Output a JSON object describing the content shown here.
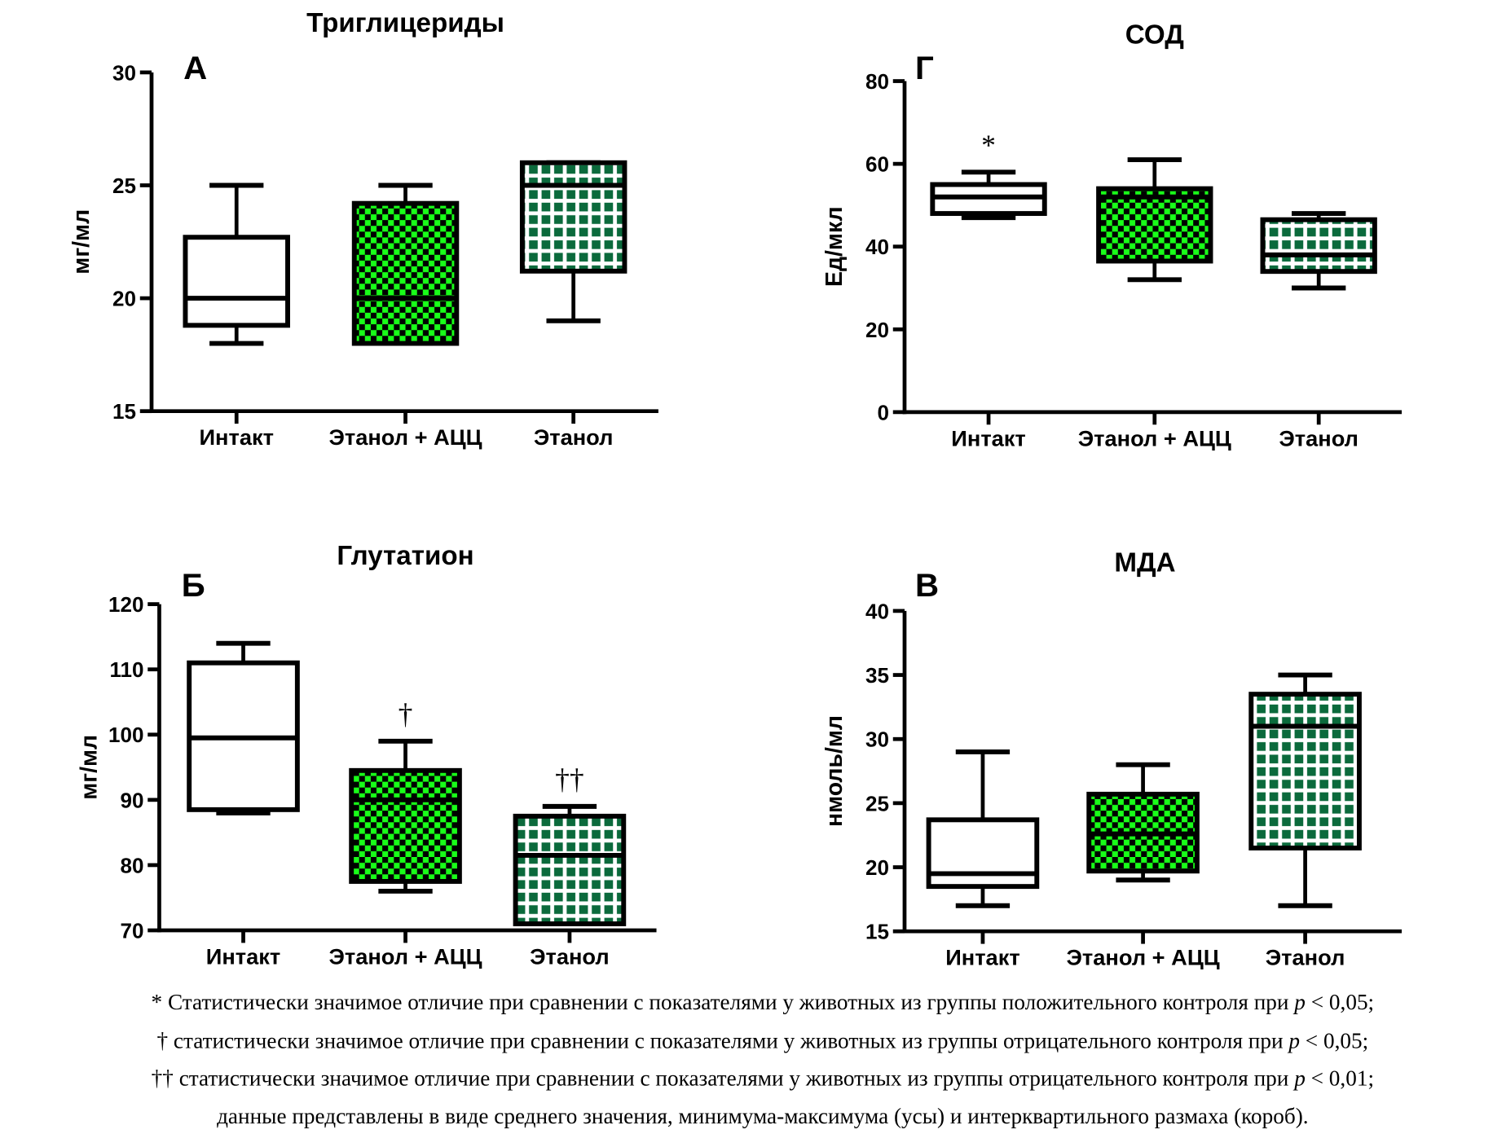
{
  "colors": {
    "checker_green": "#19ff19",
    "grid_green": "#0b6a3c",
    "stroke": "#000000"
  },
  "chart_data": [
    {
      "type": "box",
      "title": "Триглицериды",
      "panel_letter": "А",
      "ylabel": "мг/мл",
      "ylim": [
        15,
        30
      ],
      "yticks": [
        15,
        20,
        25,
        30
      ],
      "categories": [
        "Интакт",
        "Этанол + АЦЦ",
        "Этанол"
      ],
      "boxes": [
        {
          "min": 18,
          "q1": 18.8,
          "median": 20,
          "q3": 22.7,
          "max": 25,
          "fill": "none"
        },
        {
          "min": 18,
          "q1": 18,
          "median": 20,
          "q3": 24.2,
          "max": 25,
          "fill": "checker"
        },
        {
          "min": 19,
          "q1": 21.2,
          "median": 25,
          "q3": 26,
          "max": 26,
          "fill": "grid"
        }
      ],
      "annotations": [
        "",
        "",
        ""
      ]
    },
    {
      "type": "box",
      "title": "СОД",
      "panel_letter": "Г",
      "ylabel": "Ед/мкл",
      "ylim": [
        0,
        80
      ],
      "yticks": [
        0,
        20,
        40,
        60,
        80
      ],
      "categories": [
        "Интакт",
        "Этанол + АЦЦ",
        "Этанол"
      ],
      "boxes": [
        {
          "min": 47,
          "q1": 48,
          "median": 52,
          "q3": 55,
          "max": 58,
          "fill": "none"
        },
        {
          "min": 32,
          "q1": 36.5,
          "median": 52,
          "q3": 54,
          "max": 61,
          "fill": "checker"
        },
        {
          "min": 30,
          "q1": 34,
          "median": 38,
          "q3": 46.5,
          "max": 48,
          "fill": "grid"
        }
      ],
      "annotations": [
        "*",
        "",
        ""
      ]
    },
    {
      "type": "box",
      "title": "Глутатион",
      "panel_letter": "Б",
      "ylabel": "мг/мл",
      "ylim": [
        70,
        120
      ],
      "yticks": [
        70,
        80,
        90,
        100,
        110,
        120
      ],
      "categories": [
        "Интакт",
        "Этанол + АЦЦ",
        "Этанол"
      ],
      "boxes": [
        {
          "min": 88,
          "q1": 88.5,
          "median": 99.5,
          "q3": 111,
          "max": 114,
          "fill": "none"
        },
        {
          "min": 76,
          "q1": 77.5,
          "median": 90,
          "q3": 94.5,
          "max": 99,
          "fill": "checker"
        },
        {
          "min": 71,
          "q1": 71,
          "median": 81.5,
          "q3": 87.5,
          "max": 89,
          "fill": "grid"
        }
      ],
      "annotations": [
        "",
        "†",
        "††"
      ]
    },
    {
      "type": "box",
      "title": "МДА",
      "panel_letter": "В",
      "ylabel": "нмоль/мл",
      "ylim": [
        15,
        40
      ],
      "yticks": [
        15,
        20,
        25,
        30,
        35,
        40
      ],
      "categories": [
        "Интакт",
        "Этанол + АЦЦ",
        "Этанол"
      ],
      "boxes": [
        {
          "min": 17,
          "q1": 18.5,
          "median": 19.5,
          "q3": 23.7,
          "max": 29,
          "fill": "none"
        },
        {
          "min": 19,
          "q1": 19.7,
          "median": 22.6,
          "q3": 25.7,
          "max": 28,
          "fill": "checker"
        },
        {
          "min": 17,
          "q1": 21.5,
          "median": 31,
          "q3": 33.5,
          "max": 35,
          "fill": "grid"
        }
      ],
      "annotations": [
        "",
        "",
        ""
      ]
    }
  ],
  "footnotes": [
    {
      "pre": "* Статистически значимое отличие при сравнении с показателями у животных из группы положительного контроля при ",
      "p": "p",
      "post": " < 0,05;"
    },
    {
      "pre": "† статистически значимое отличие при сравнении с показателями у животных из группы отрицательного контроля при ",
      "p": "p",
      "post": " < 0,05;"
    },
    {
      "pre": "†† статистически значимое отличие при сравнении с показателями у животных из группы отрицательного контроля при ",
      "p": "p",
      "post": " < 0,01;"
    },
    {
      "pre": "данные представлены в виде среднего значения, минимума-максимума (усы) и интерквартильного размаха (короб).",
      "p": "",
      "post": ""
    }
  ]
}
